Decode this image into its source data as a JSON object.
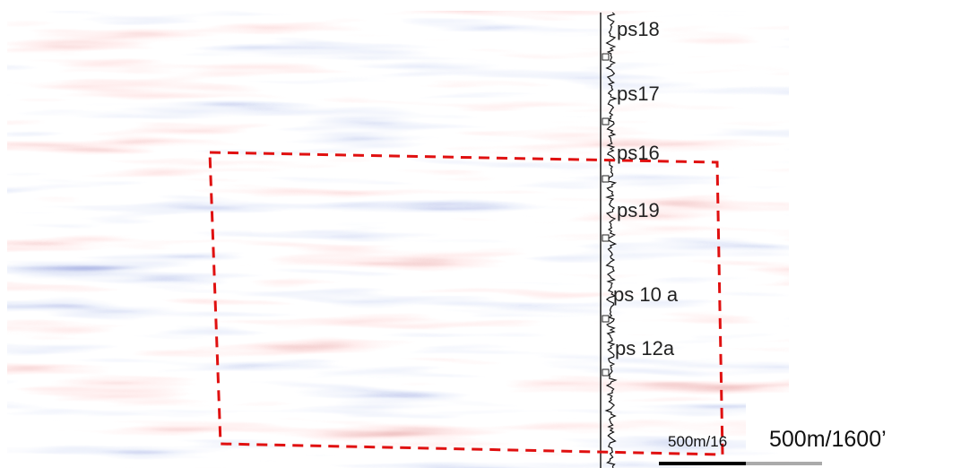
{
  "well_tops": [
    "ps18",
    "ps17",
    "ps16",
    "ps19",
    "ps 10 a",
    "ps 12a"
  ],
  "scale_bar": {
    "small_label": "500m/16",
    "large_label": "500m/1600’"
  }
}
